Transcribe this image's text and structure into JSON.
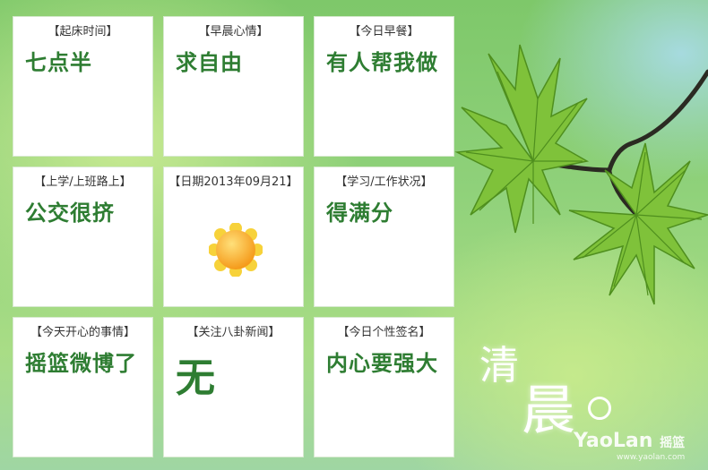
{
  "tiles": [
    {
      "header": "【起床时间】",
      "body": "七点半"
    },
    {
      "header": "【早晨心情】",
      "body": "求自由"
    },
    {
      "header": "【今日早餐】",
      "body": "有人帮我做"
    },
    {
      "header": "【上学/上班路上】",
      "body": "公交很挤"
    },
    {
      "header": "【日期2013年09月21】",
      "body": ""
    },
    {
      "header": "【学习/工作状况】",
      "body": "得满分"
    },
    {
      "header": "【今天开心的事情】",
      "body": "摇篮微博了"
    },
    {
      "header": "【关注八卦新闻】",
      "body": "无"
    },
    {
      "header": "【今日个性签名】",
      "body": "内心要强大"
    }
  ],
  "icons": {
    "weather": "sun-icon"
  },
  "decor": {
    "title_char_1": "清",
    "title_char_2": "晨",
    "watermark_brand": "YaoLan",
    "watermark_cn": "摇篮",
    "watermark_url": "www.yaolan.com"
  },
  "colors": {
    "tile_text": "#2e7d32",
    "background": "#8fd17a"
  }
}
